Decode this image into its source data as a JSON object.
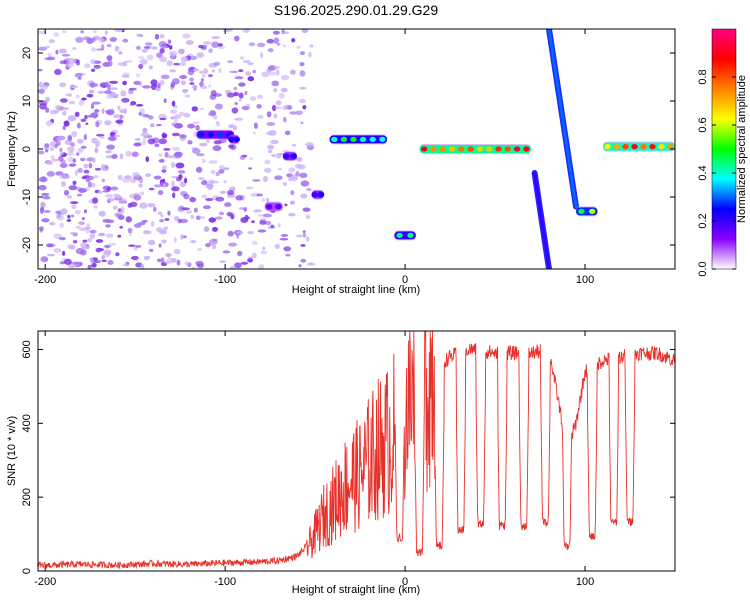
{
  "title": "S196.2025.290.01.29.G29",
  "chart_data": [
    {
      "type": "heatmap",
      "title": "S196.2025.290.01.29.G29",
      "xlabel": "Height of straight line (km)",
      "ylabel": "Frequency (Hz)",
      "xlim": [
        -204,
        150
      ],
      "ylim": [
        -25,
        25
      ],
      "xticks": [
        -200,
        -100,
        0,
        100
      ],
      "yticks": [
        -20,
        -10,
        0,
        10,
        20
      ],
      "colorbar": {
        "label": "Normalized spectral amplitude",
        "range": [
          0.0,
          1.0
        ],
        "ticks": [
          0.0,
          0.2,
          0.4,
          0.6,
          0.8
        ],
        "tick_labels": [
          "0.0",
          "0.2",
          "0.4",
          "0.6",
          "0.8"
        ],
        "colormap": [
          "#ffffff",
          "#8b00ff",
          "#0000ff",
          "#00ffff",
          "#00ff00",
          "#ffff00",
          "#ff8000",
          "#ff0000",
          "#ff0080"
        ]
      },
      "features": [
        {
          "name": "noise-region",
          "x_range": [
            -204,
            -52
          ],
          "freq_range": [
            -25,
            25
          ],
          "amplitude": 0.15
        },
        {
          "name": "segment",
          "x_range": [
            -116,
            -95
          ],
          "freq": 3,
          "amplitude": 0.3
        },
        {
          "name": "segment",
          "x_range": [
            -98,
            -92
          ],
          "freq": 2,
          "amplitude": 0.25
        },
        {
          "name": "segment",
          "x_range": [
            -78,
            -68
          ],
          "freq": -12,
          "amplitude": 0.2
        },
        {
          "name": "segment",
          "x_range": [
            -68,
            -60
          ],
          "freq": -1.5,
          "amplitude": 0.25
        },
        {
          "name": "segment",
          "x_range": [
            -52,
            -45
          ],
          "freq": -9.5,
          "amplitude": 0.25
        },
        {
          "name": "segment",
          "x_range": [
            -42,
            -10
          ],
          "freq": 2,
          "amplitude": 0.5
        },
        {
          "name": "segment",
          "x_range": [
            -6,
            6
          ],
          "freq": -18,
          "amplitude": 0.45
        },
        {
          "name": "segment",
          "x_range": [
            8,
            70
          ],
          "freq": 0,
          "amplitude": 0.95
        },
        {
          "name": "diagonal",
          "x_start": 72,
          "x_end": 80,
          "freq_start": -5,
          "freq_end": -25,
          "amplitude": 0.2
        },
        {
          "name": "diagonal",
          "x_start": 80,
          "x_end": 95,
          "freq_start": 25,
          "freq_end": -12,
          "amplitude": 0.3
        },
        {
          "name": "segment",
          "x_range": [
            95,
            107
          ],
          "freq": -13,
          "amplitude": 0.6
        },
        {
          "name": "segment",
          "x_range": [
            110,
            150
          ],
          "freq": 0.5,
          "amplitude": 0.9
        }
      ]
    },
    {
      "type": "line",
      "xlabel": "Height of straight line (km)",
      "ylabel": "SNR (10 * v/v)",
      "xlim": [
        -204,
        150
      ],
      "ylim": [
        0,
        650
      ],
      "xticks": [
        -200,
        -100,
        0,
        100
      ],
      "yticks": [
        0,
        200,
        400,
        600
      ],
      "series": [
        {
          "name": "SNR",
          "color": "#e8302a",
          "x": [
            -204,
            -180,
            -160,
            -140,
            -120,
            -100,
            -80,
            -70,
            -60,
            -52,
            -45,
            -40,
            -35,
            -30,
            -25,
            -20,
            -15,
            -10,
            -5,
            0,
            5,
            10,
            15,
            20,
            25,
            30,
            35,
            40,
            50,
            60,
            70,
            80,
            90,
            95,
            100,
            110,
            120,
            130,
            140,
            150
          ],
          "values": [
            15,
            18,
            16,
            20,
            18,
            22,
            25,
            28,
            40,
            80,
            150,
            180,
            220,
            250,
            260,
            300,
            330,
            350,
            380,
            430,
            470,
            500,
            540,
            560,
            580,
            590,
            600,
            600,
            590,
            590,
            590,
            600,
            330,
            400,
            540,
            570,
            580,
            590,
            590,
            570
          ]
        }
      ],
      "dropouts": [
        {
          "x": -3,
          "min": 80
        },
        {
          "x": 8,
          "min": 40
        },
        {
          "x": 19,
          "min": 55
        },
        {
          "x": 31,
          "min": 100
        },
        {
          "x": 42,
          "min": 115
        },
        {
          "x": 54,
          "min": 110
        },
        {
          "x": 66,
          "min": 110
        },
        {
          "x": 78,
          "min": 120
        },
        {
          "x": 90,
          "min": 55
        },
        {
          "x": 104,
          "min": 80
        },
        {
          "x": 116,
          "min": 120
        },
        {
          "x": 125,
          "min": 120
        }
      ]
    }
  ]
}
